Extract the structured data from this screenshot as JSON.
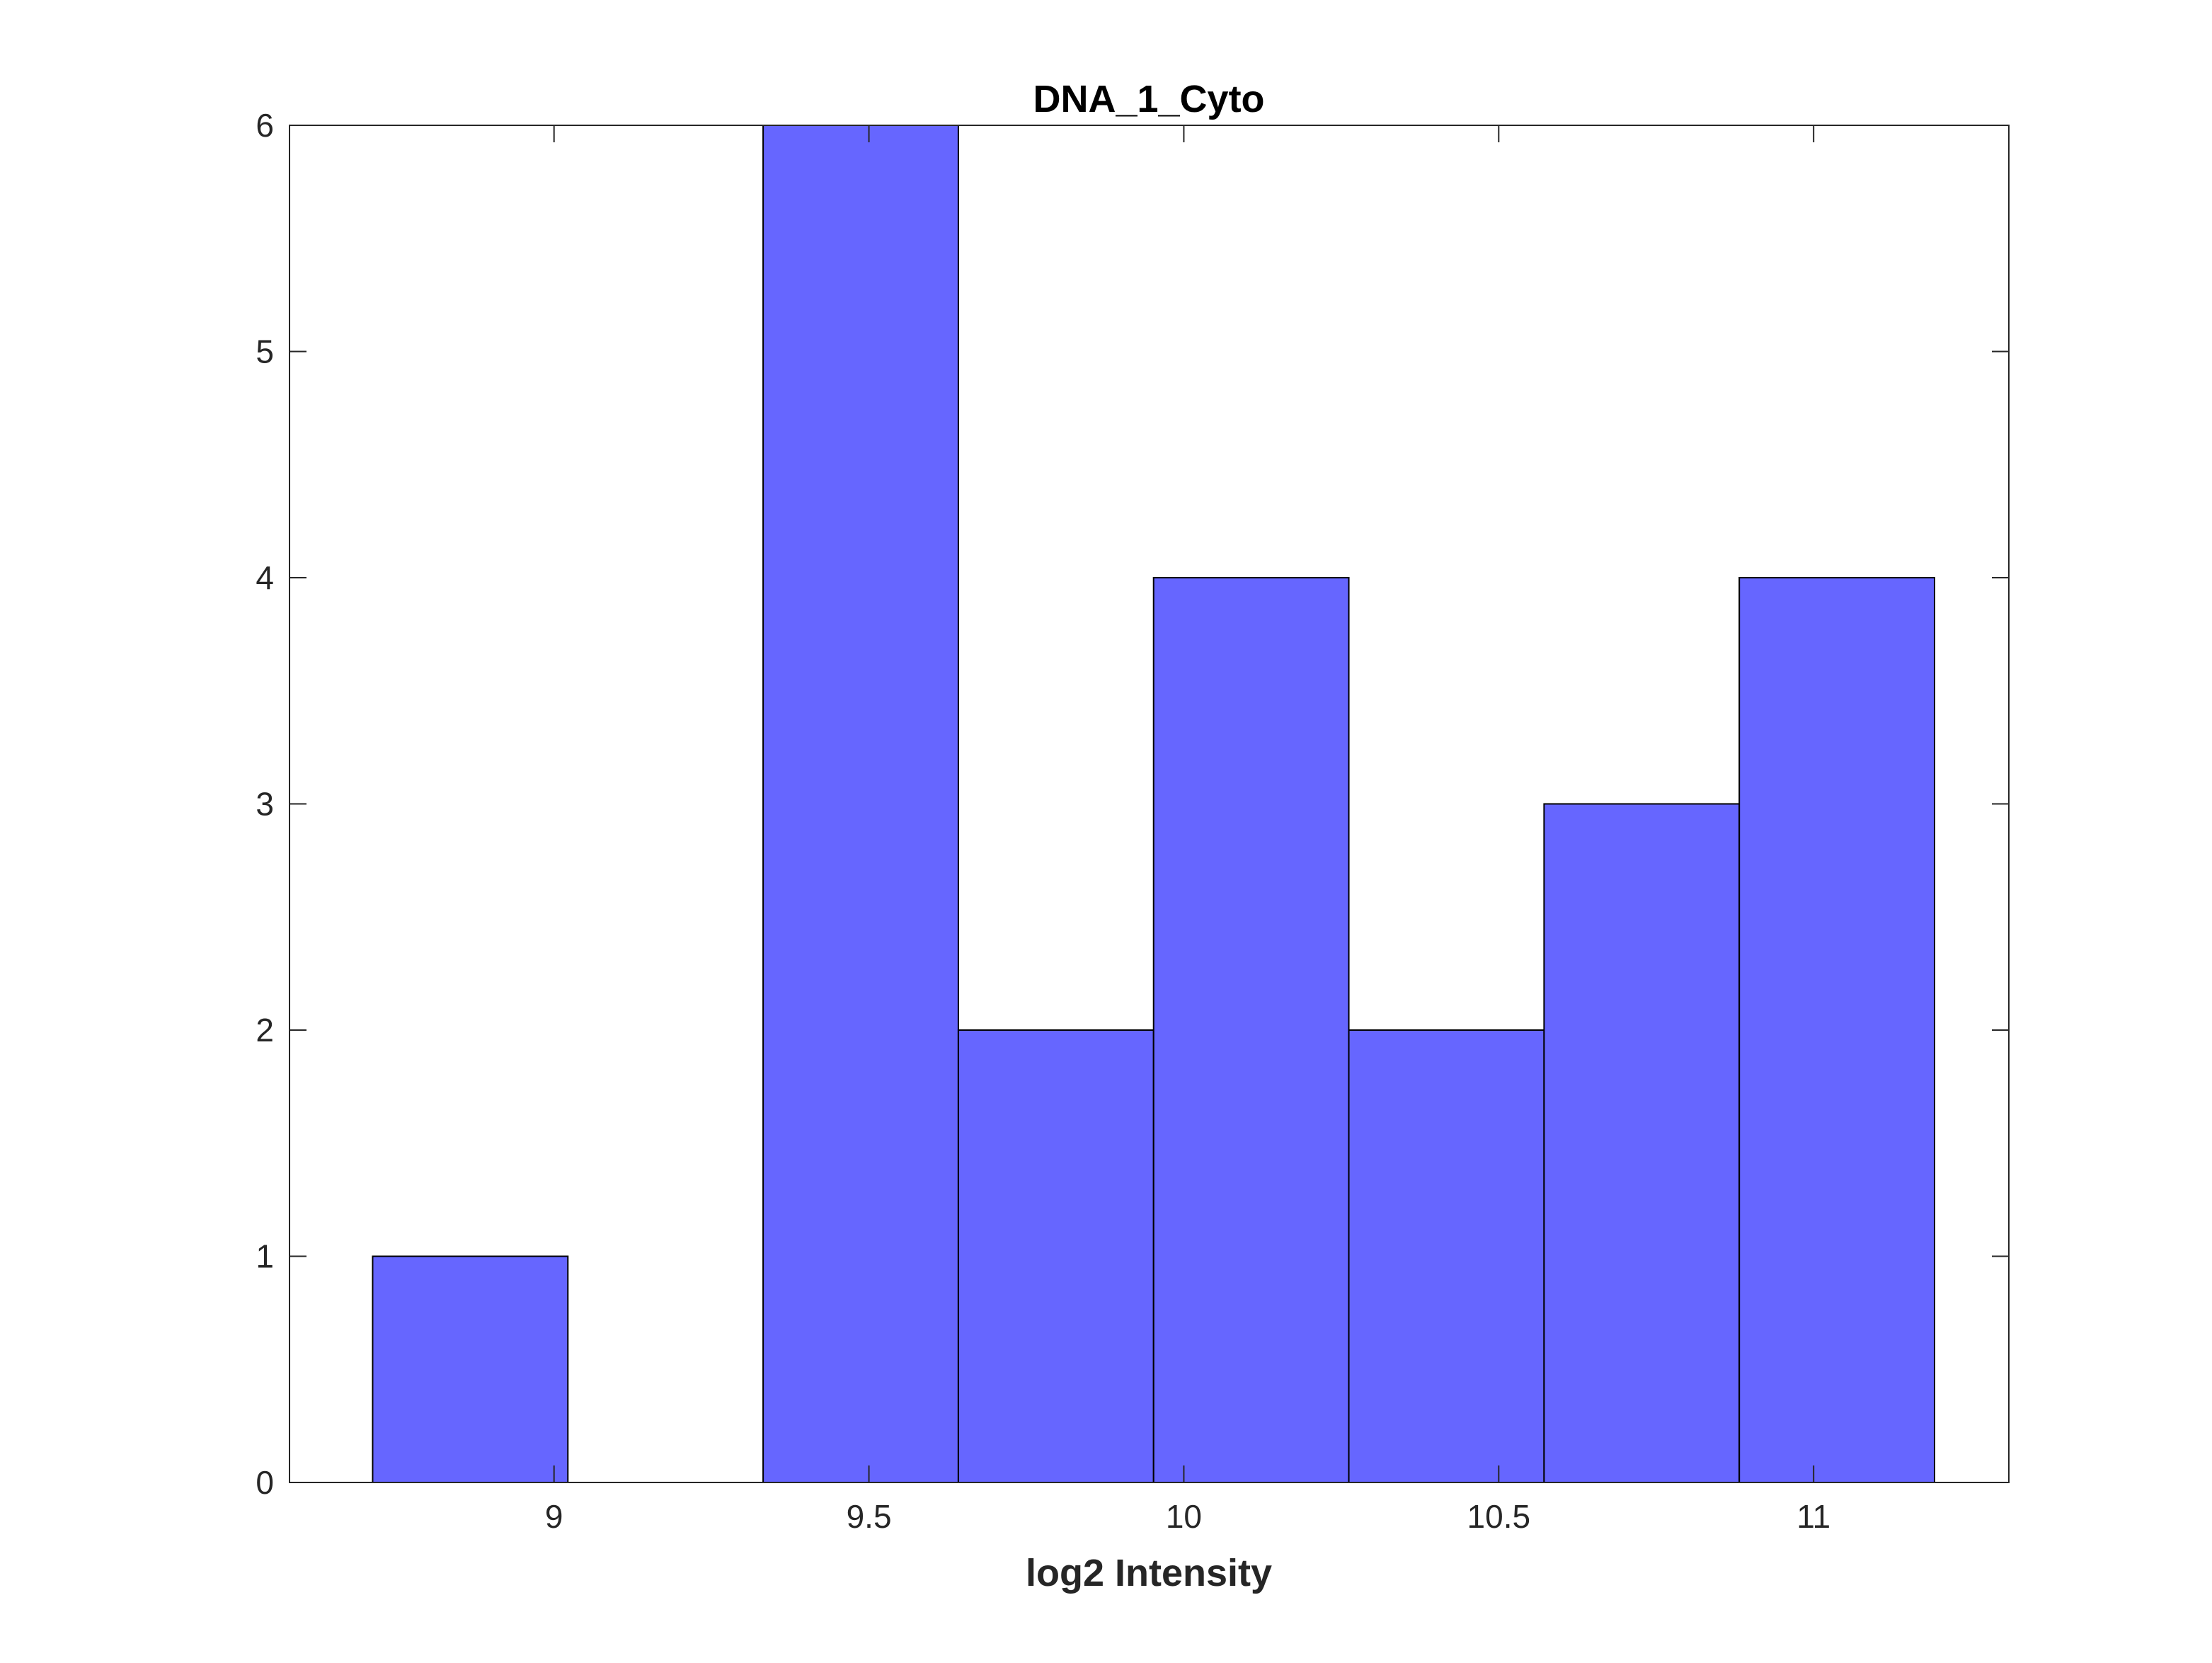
{
  "chart_data": {
    "type": "bar",
    "subtype": "histogram",
    "title": "DNA_1_Cyto",
    "xlabel": "log2 Intensity",
    "ylabel": "",
    "xlim": [
      8.58,
      11.31
    ],
    "ylim": [
      0,
      6
    ],
    "bin_edges": [
      8.712,
      9.022,
      9.332,
      9.642,
      9.952,
      10.262,
      10.572,
      10.882,
      11.192
    ],
    "counts": [
      1,
      0,
      6,
      2,
      4,
      2,
      3,
      4
    ],
    "xticks": [
      9,
      9.5,
      10,
      10.5,
      11
    ],
    "xtick_labels": [
      "9",
      "9.5",
      "10",
      "10.5",
      "11"
    ],
    "yticks": [
      0,
      1,
      2,
      3,
      4,
      5,
      6
    ],
    "ytick_labels": [
      "0",
      "1",
      "2",
      "3",
      "4",
      "5",
      "6"
    ],
    "bar_color": "#6666ff",
    "edge_color": "#000000",
    "grid": false,
    "legend": "none"
  }
}
